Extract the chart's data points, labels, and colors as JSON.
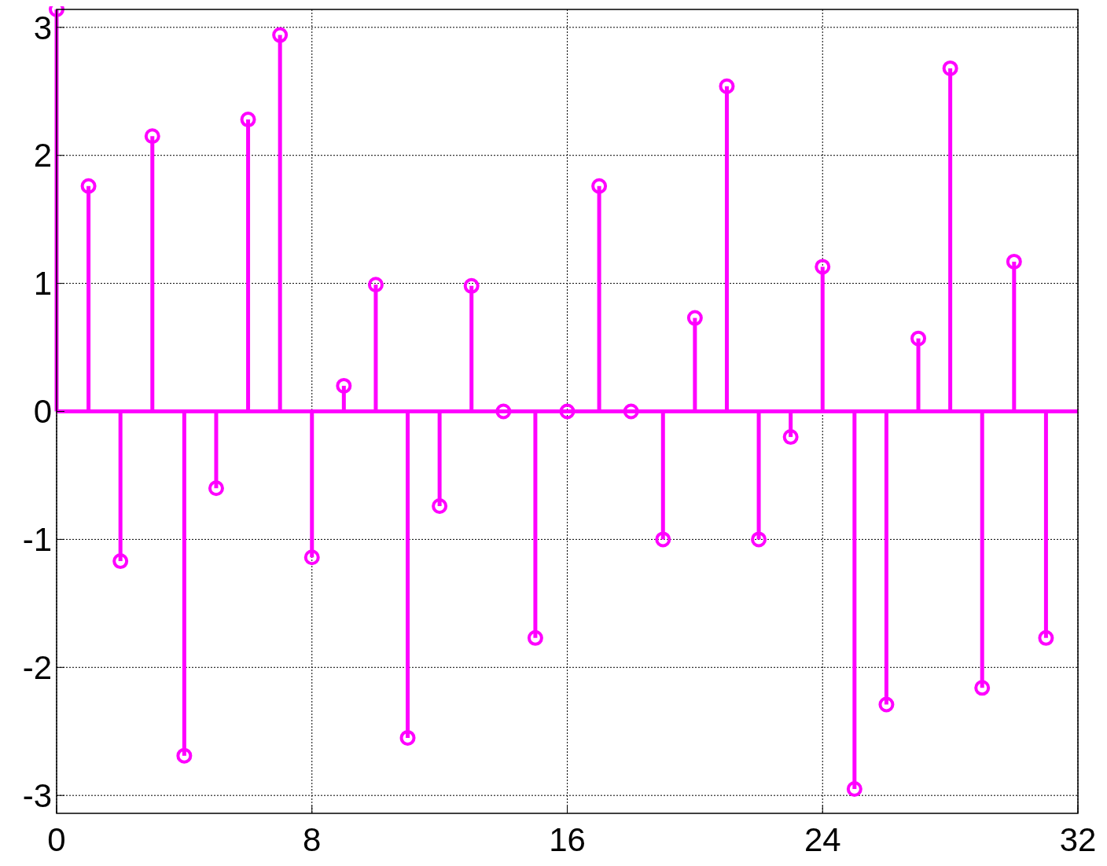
{
  "chart_data": {
    "type": "lollipop",
    "x": [
      0,
      1,
      2,
      3,
      4,
      5,
      6,
      7,
      8,
      9,
      10,
      11,
      12,
      13,
      14,
      15,
      16,
      17,
      18,
      19,
      20,
      21,
      22,
      23,
      24,
      25,
      26,
      27,
      28,
      29,
      30,
      31
    ],
    "values": [
      3.14,
      1.76,
      -1.17,
      2.15,
      -2.69,
      -0.6,
      2.28,
      2.94,
      -1.14,
      0.2,
      0.99,
      -2.55,
      -0.74,
      0.98,
      0,
      -1.77,
      0,
      1.76,
      0,
      -1,
      0.73,
      2.54,
      -1,
      -0.2,
      1.13,
      -2.95,
      -2.29,
      0.57,
      2.68,
      -2.16,
      1.17,
      -1.77
    ],
    "color": "#ff00ff",
    "xlim": [
      0,
      32
    ],
    "xticks": [
      0,
      8,
      16,
      24,
      32
    ],
    "ylim": [
      -3.14,
      3.14
    ],
    "yticks": [
      -3,
      -2,
      -1,
      0,
      1,
      2,
      3
    ],
    "grid": true,
    "ref_lines": [
      {
        "axis": "y",
        "value": 0,
        "color": "#ff00ff"
      }
    ],
    "marker": "circle"
  }
}
